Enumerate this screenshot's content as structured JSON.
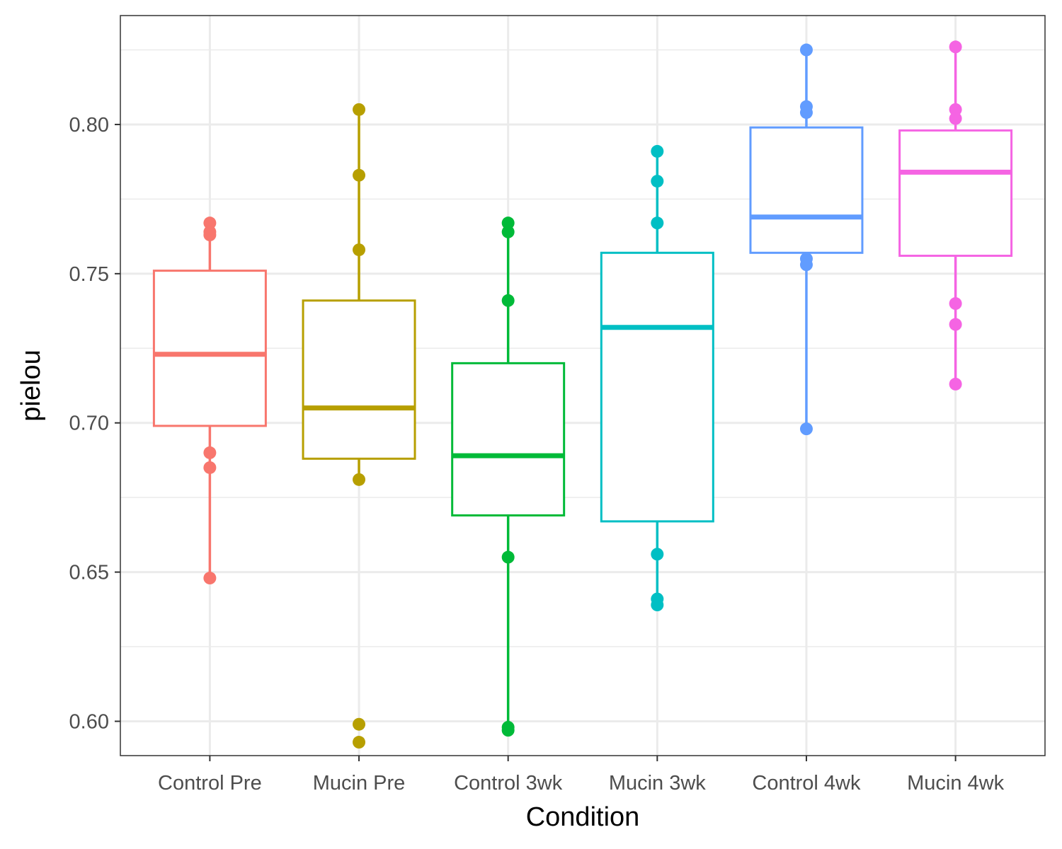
{
  "chart_data": {
    "type": "box",
    "xlabel": "Condition",
    "ylabel": "pielou",
    "ylim": [
      0.5885,
      0.8365
    ],
    "y_major_ticks": [
      0.6,
      0.65,
      0.7,
      0.75,
      0.8
    ],
    "y_tick_labels": [
      "0.60",
      "0.65",
      "0.70",
      "0.75",
      "0.80"
    ],
    "y_minor_ticks": [
      0.625,
      0.675,
      0.725,
      0.775,
      0.825
    ],
    "grid": true,
    "legend": "none",
    "categories": [
      "Control Pre",
      "Mucin Pre",
      "Control 3wk",
      "Mucin 3wk",
      "Control 4wk",
      "Mucin 4wk"
    ],
    "series": [
      {
        "name": "Control Pre",
        "color": "#F8766D",
        "q1": 0.699,
        "median": 0.723,
        "q3": 0.751,
        "whisker_low": 0.648,
        "whisker_high": 0.767,
        "points": [
          0.767,
          0.764,
          0.763,
          0.69,
          0.685,
          0.648
        ]
      },
      {
        "name": "Mucin Pre",
        "color": "#B79F00",
        "q1": 0.688,
        "median": 0.705,
        "q3": 0.741,
        "whisker_low": 0.681,
        "whisker_high": 0.805,
        "points": [
          0.805,
          0.783,
          0.758,
          0.681,
          0.599,
          0.593
        ]
      },
      {
        "name": "Control 3wk",
        "color": "#00BA38",
        "q1": 0.669,
        "median": 0.689,
        "q3": 0.72,
        "whisker_low": 0.598,
        "whisker_high": 0.767,
        "points": [
          0.767,
          0.764,
          0.741,
          0.655,
          0.598,
          0.597
        ]
      },
      {
        "name": "Mucin 3wk",
        "color": "#00BFC4",
        "q1": 0.667,
        "median": 0.732,
        "q3": 0.757,
        "whisker_low": 0.639,
        "whisker_high": 0.791,
        "points": [
          0.791,
          0.781,
          0.767,
          0.656,
          0.641,
          0.639
        ]
      },
      {
        "name": "Control 4wk",
        "color": "#619CFF",
        "q1": 0.757,
        "median": 0.769,
        "q3": 0.799,
        "whisker_low": 0.698,
        "whisker_high": 0.825,
        "points": [
          0.825,
          0.806,
          0.804,
          0.755,
          0.753,
          0.698
        ]
      },
      {
        "name": "Mucin 4wk",
        "color": "#F564E3",
        "q1": 0.756,
        "median": 0.784,
        "q3": 0.798,
        "whisker_low": 0.713,
        "whisker_high": 0.826,
        "points": [
          0.826,
          0.805,
          0.802,
          0.74,
          0.733,
          0.713
        ]
      }
    ]
  }
}
